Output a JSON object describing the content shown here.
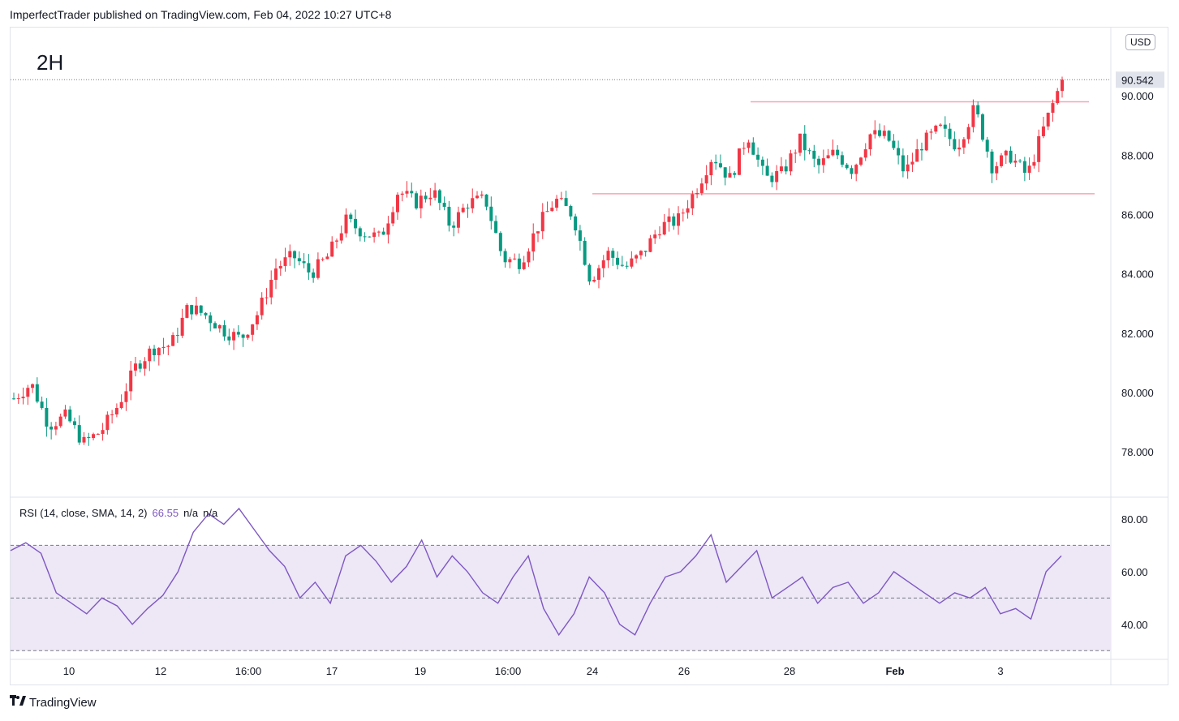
{
  "header": {
    "published": "ImperfectTrader published on TradingView.com, Feb 04, 2022 10:27 UTC+8"
  },
  "timeframe": "2H",
  "currency": "USD",
  "last_price": "90.542",
  "colors": {
    "up": "#f23645",
    "down": "#089981",
    "rsi": "#7e57c2",
    "rsi_band": "#ede7f6",
    "level": "#f8a5b2",
    "grid": "#e0e3eb"
  },
  "rsi_legend": {
    "label": "RSI (14, close, SMA, 14, 2)",
    "value": "66.55",
    "na1": "n/a",
    "na2": "n/a"
  },
  "footer": {
    "brand": "TradingView",
    "logo": "tradingview-logo-icon"
  },
  "chart_data": [
    {
      "type": "candlestick",
      "title": "2H",
      "ylim": [
        76.5,
        92.3
      ],
      "price_axis_ticks": [
        "90.000",
        "88.000",
        "86.000",
        "84.000",
        "82.000",
        "80.000",
        "78.000"
      ],
      "time_axis_labels": [
        "10",
        "12",
        "16:00",
        "17",
        "19",
        "16:00",
        "24",
        "26",
        "28",
        "Feb",
        "3"
      ],
      "horizontal_levels": [
        89.8,
        86.7
      ],
      "last_price": 90.542,
      "anchors": [
        79.8,
        80.3,
        78.9,
        79.2,
        78.3,
        78.7,
        79.6,
        80.9,
        81.5,
        81.6,
        82.9,
        82.6,
        82.1,
        81.8,
        82.7,
        84.2,
        84.6,
        84.0,
        84.6,
        85.8,
        85.4,
        85.2,
        86.8,
        86.4,
        86.8,
        85.6,
        86.4,
        86.5,
        84.5,
        84.4,
        85.6,
        86.5,
        86.0,
        83.8,
        84.7,
        84.2,
        84.7,
        85.6,
        85.8,
        86.8,
        88.0,
        87.2,
        88.7,
        87.2,
        87.4,
        88.5,
        87.6,
        88.1,
        87.5,
        88.7,
        88.6,
        87.4,
        88.4,
        88.9,
        88.3,
        89.6,
        87.6,
        88.0,
        87.3,
        89.0,
        90.54
      ]
    },
    {
      "type": "line",
      "title": "RSI (14, close, SMA, 14, 2)",
      "ylim": [
        27,
        88
      ],
      "y_ticks": [
        "80.00",
        "60.00",
        "40.00"
      ],
      "bands": [
        70,
        50,
        30
      ],
      "last_value": 66.55,
      "values": [
        68,
        71,
        67,
        52,
        48,
        44,
        50,
        47,
        40,
        46,
        51,
        60,
        75,
        82,
        78,
        84,
        76,
        68,
        62,
        50,
        56,
        48,
        66,
        70,
        64,
        56,
        62,
        72,
        58,
        66,
        60,
        52,
        48,
        58,
        66,
        46,
        36,
        44,
        58,
        52,
        40,
        36,
        48,
        58,
        60,
        66,
        74,
        56,
        62,
        68,
        50,
        54,
        58,
        48,
        54,
        56,
        48,
        52,
        60,
        56,
        52,
        48,
        52,
        50,
        54,
        44,
        46,
        42,
        60,
        66
      ]
    }
  ]
}
